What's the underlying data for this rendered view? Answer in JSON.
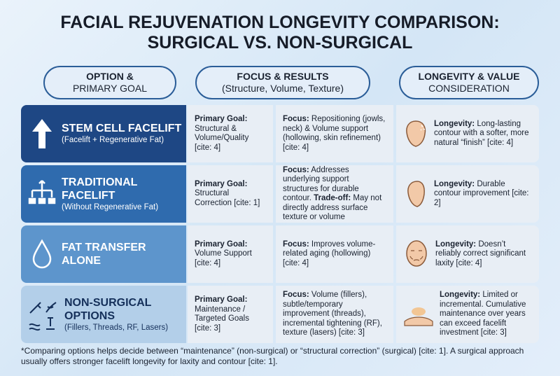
{
  "title_lines": [
    "FACIAL REJUVENATION LONGEVITY COMPARISON:",
    "SURGICAL VS. NON-SURGICAL"
  ],
  "headers": [
    {
      "lines": [
        "OPTION &",
        "PRIMARY GOAL"
      ]
    },
    {
      "lines": [
        "FOCUS & RESULTS",
        "(Structure, Volume, Texture)"
      ]
    },
    {
      "lines": [
        "LONGEVITY & VALUE",
        "CONSIDERATION"
      ]
    }
  ],
  "rows": [
    {
      "title": "STEM CELL FACELIFT",
      "subtitle": "(Facelift + Regenerative Fat)",
      "goal": {
        "label": "Primary Goal:",
        "text": "Structural & Volume/Quality [cite: 4]"
      },
      "focus": [
        {
          "label": "Focus:",
          "text": "Repositioning (jowls, neck) & Volume support (hollowing, skin refinement) [cite: 4]"
        }
      ],
      "longevity": {
        "label": "Longevity:",
        "text": "Long-lasting contour with a softer, more natural “finish” [cite: 4]"
      }
    },
    {
      "title": "TRADITIONAL FACELIFT",
      "subtitle": "(Without Regenerative Fat)",
      "goal": {
        "label": "Primary Goal:",
        "text": "Structural Correction [cite: 1]"
      },
      "focus": [
        {
          "label": "Focus:",
          "text": "Addresses underlying support structures for durable contour."
        },
        {
          "label": "Trade-off:",
          "text": "May not directly address surface texture or volume"
        }
      ],
      "longevity": {
        "label": "Longevity:",
        "text": "Durable contour improvement [cite: 2]"
      }
    },
    {
      "title": "FAT TRANSFER ALONE",
      "goal": {
        "label": "Primary Goal:",
        "text": "Volume Support [cite: 4]"
      },
      "focus": [
        {
          "label": "Focus:",
          "text": "Improves volume-related aging (hollowing) [cite: 4]"
        }
      ],
      "longevity": {
        "label": "Longevity:",
        "text": "Doesn’t reliably correct significant laxity [cite: 4]"
      }
    },
    {
      "title": "NON-SURGICAL OPTIONS",
      "subtitle": "(Fillers, Threads, RF, Lasers)",
      "goal": {
        "label": "Primary Goal:",
        "text": "Maintenance / Targeted Goals [cite: 3]"
      },
      "focus": [
        {
          "label": "Focus:",
          "text": "Volume (fillers), subtle/temporary improvement (threads), incremental tightening (RF), texture (lasers) [cite: 3]"
        }
      ],
      "longevity": {
        "label": "Longevity:",
        "text": "Limited or incremental. Cumulative maintenance over years can exceed facelift investment [cite: 3]"
      }
    }
  ],
  "footnote": "*Comparing options helps decide between “maintenance” (non-surgical) or “structural correction” (surgical) [cite: 1]. A surgical approach usually offers stronger facelift longevity for laxity and contour [cite: 1]."
}
